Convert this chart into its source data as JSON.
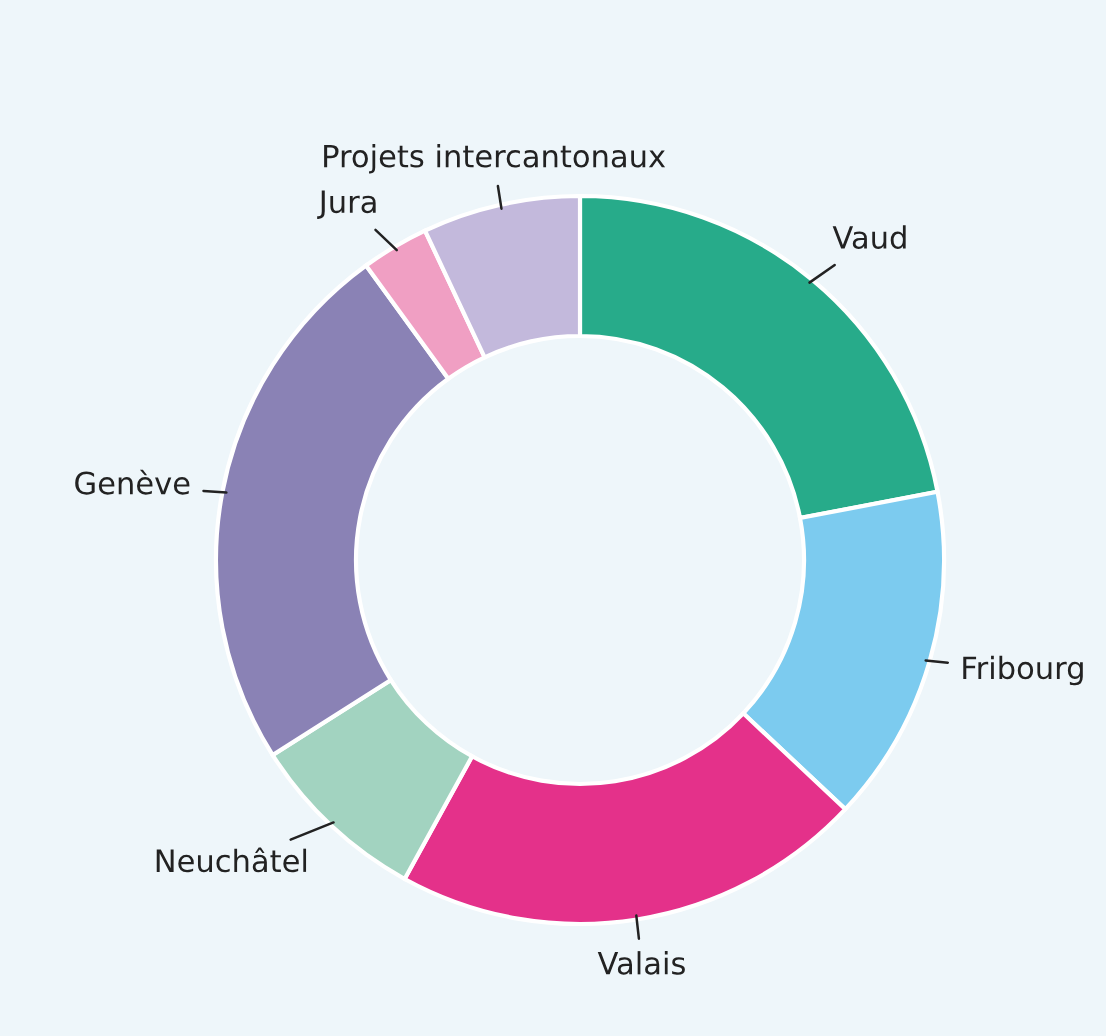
{
  "chart_data": {
    "type": "donut",
    "categories": [
      "Vaud",
      "Fribourg",
      "Valais",
      "Neuchâtel",
      "Genève",
      "Jura",
      "Projets intercantonaux"
    ],
    "values": [
      22,
      15,
      21,
      8,
      24,
      3,
      7
    ],
    "colors": [
      "#27ab8a",
      "#7ccbef",
      "#e4318a",
      "#a2d3c0",
      "#8a82b5",
      "#f09fc3",
      "#c3b9dc"
    ],
    "legend": false
  }
}
